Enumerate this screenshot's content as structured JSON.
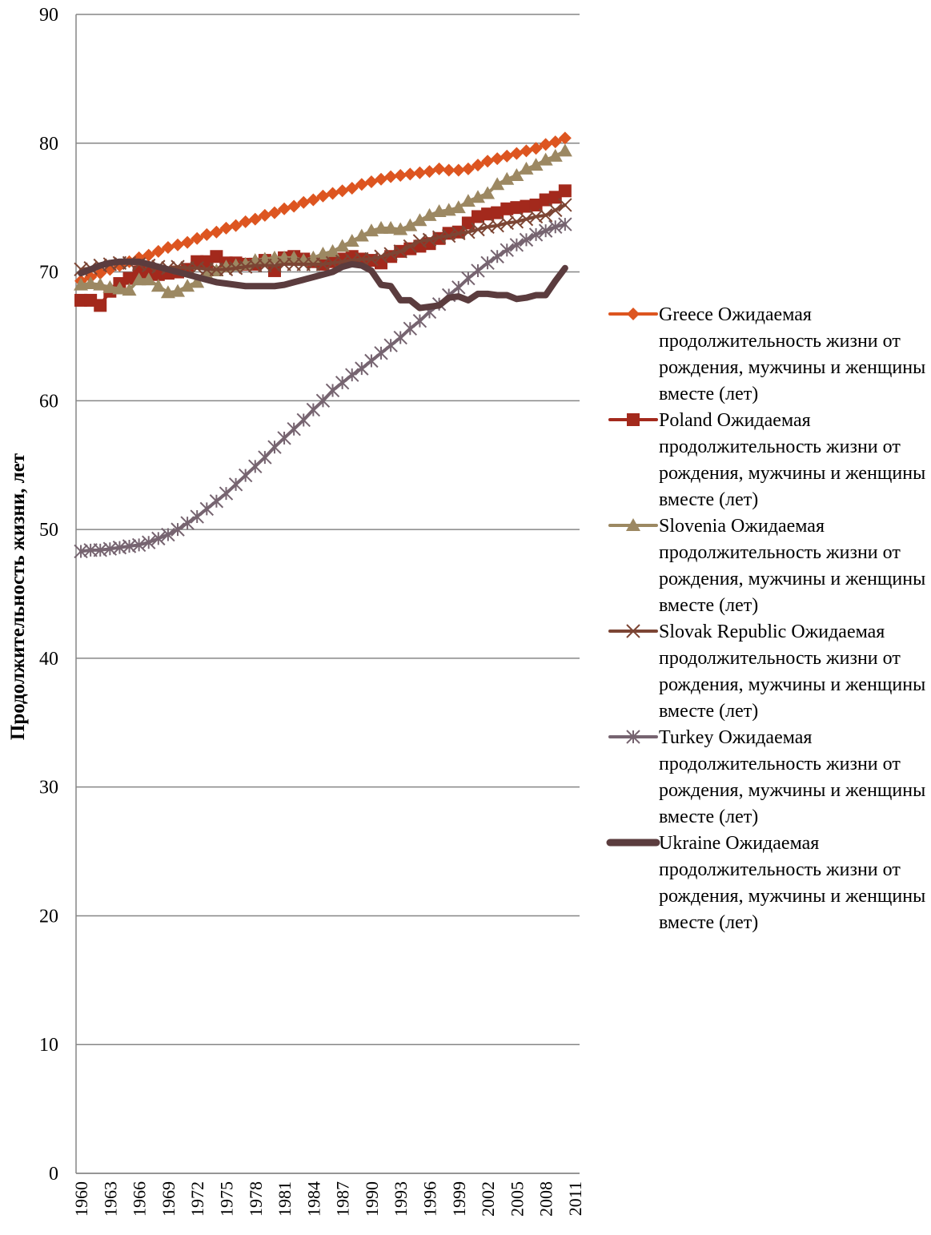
{
  "chart_data": {
    "type": "line",
    "y_axis_label": "Продолжительность жизни, лет",
    "categories": [
      "1960",
      null,
      null,
      "1963",
      null,
      null,
      "1966",
      null,
      null,
      "1969",
      null,
      null,
      "1972",
      null,
      null,
      "1975",
      null,
      null,
      "1978",
      null,
      null,
      "1981",
      null,
      null,
      "1984",
      null,
      null,
      "1987",
      null,
      null,
      "1990",
      null,
      null,
      "1993",
      null,
      null,
      "1996",
      null,
      null,
      "1999",
      null,
      null,
      "2002",
      null,
      null,
      "2005",
      null,
      null,
      "2008",
      null,
      null,
      "2011"
    ],
    "ylim": [
      0,
      90
    ],
    "yticks": [
      0,
      10,
      20,
      30,
      40,
      50,
      60,
      70,
      80,
      90
    ],
    "grid": true,
    "legend": "right",
    "series": [
      {
        "name": "Greece Ожидаемая продолжительность жизни от рождения, мужчины и женщины вместе (лет)",
        "color": "#dd5520",
        "marker": "diamond",
        "values": [
          69.3,
          69.6,
          69.9,
          70.2,
          70.5,
          70.8,
          71.1,
          71.3,
          71.6,
          71.9,
          72.1,
          72.3,
          72.6,
          72.9,
          73.1,
          73.4,
          73.6,
          73.9,
          74.1,
          74.4,
          74.6,
          74.9,
          75.1,
          75.4,
          75.6,
          75.9,
          76.1,
          76.3,
          76.5,
          76.8,
          77.0,
          77.2,
          77.4,
          77.5,
          77.6,
          77.7,
          77.8,
          78.0,
          77.9,
          77.9,
          78.0,
          78.3,
          78.6,
          78.8,
          79.0,
          79.2,
          79.4,
          79.6,
          79.9,
          80.1,
          80.4,
          null
        ]
      },
      {
        "name": "Poland Ожидаемая продолжительность жизни от рождения, мужчины и женщины вместе (лет)",
        "color": "#a3291c",
        "marker": "square",
        "values": [
          67.8,
          67.8,
          67.4,
          68.5,
          69.1,
          69.5,
          70.0,
          69.9,
          69.8,
          69.9,
          70.0,
          70.2,
          70.8,
          70.8,
          71.2,
          70.7,
          70.7,
          70.6,
          70.6,
          70.9,
          70.1,
          71.1,
          71.2,
          71.0,
          70.8,
          70.6,
          70.8,
          71.0,
          71.2,
          71.0,
          70.9,
          70.7,
          71.2,
          71.6,
          71.8,
          72.0,
          72.2,
          72.6,
          73.0,
          73.1,
          73.8,
          74.3,
          74.5,
          74.6,
          74.9,
          75.0,
          75.1,
          75.2,
          75.6,
          75.8,
          76.3,
          null
        ]
      },
      {
        "name": "Slovenia Ожидаемая продолжительность жизни от рождения, мужчины и женщины вместе (лет)",
        "color": "#9c8862",
        "marker": "triangle",
        "values": [
          69.0,
          69.1,
          69.0,
          68.8,
          68.7,
          68.6,
          69.4,
          69.4,
          68.9,
          68.4,
          68.5,
          68.9,
          69.2,
          69.8,
          70.1,
          70.4,
          70.5,
          70.6,
          70.9,
          71.0,
          71.1,
          71.1,
          71.1,
          70.9,
          71.1,
          71.4,
          71.6,
          72.0,
          72.4,
          72.8,
          73.2,
          73.4,
          73.4,
          73.3,
          73.6,
          74.0,
          74.4,
          74.7,
          74.8,
          75.0,
          75.5,
          75.8,
          76.1,
          76.8,
          77.2,
          77.5,
          78.0,
          78.3,
          78.7,
          79.0,
          79.4,
          null
        ]
      },
      {
        "name": "Slovak Republic Ожидаемая продолжительность жизни от рождения, мужчины и женщины вместе (лет)",
        "color": "#7c4534",
        "marker": "x",
        "values": [
          70.2,
          70.3,
          70.5,
          70.6,
          70.7,
          70.7,
          70.6,
          70.5,
          70.4,
          70.3,
          70.4,
          70.3,
          70.3,
          70.2,
          70.2,
          70.2,
          70.3,
          70.4,
          70.5,
          70.5,
          70.5,
          70.6,
          70.6,
          70.6,
          70.6,
          70.6,
          70.7,
          70.8,
          70.9,
          71.0,
          71.0,
          71.2,
          71.4,
          71.6,
          72.0,
          72.4,
          72.5,
          72.7,
          72.8,
          73.0,
          73.1,
          73.3,
          73.5,
          73.6,
          73.8,
          73.9,
          74.1,
          74.3,
          74.4,
          74.8,
          75.2,
          null
        ]
      },
      {
        "name": "Turkey Ожидаемая продолжительность жизни от рождения, мужчины и женщины вместе (лет)",
        "color": "#766470",
        "marker": "star",
        "values": [
          48.3,
          48.4,
          48.4,
          48.5,
          48.6,
          48.7,
          48.8,
          49.0,
          49.3,
          49.6,
          50.0,
          50.5,
          51.0,
          51.6,
          52.2,
          52.8,
          53.5,
          54.2,
          54.9,
          55.6,
          56.4,
          57.1,
          57.8,
          58.5,
          59.3,
          60.0,
          60.8,
          61.4,
          62.0,
          62.5,
          63.1,
          63.7,
          64.3,
          64.9,
          65.6,
          66.2,
          66.9,
          67.5,
          68.2,
          68.8,
          69.5,
          70.1,
          70.7,
          71.2,
          71.7,
          72.1,
          72.5,
          72.9,
          73.2,
          73.5,
          73.7,
          null
        ]
      },
      {
        "name": "Ukraine Ожидаемая продолжительность жизни от рождения, мужчины и женщины вместе (лет)",
        "color": "#5b3c3e",
        "marker": "none",
        "values": [
          69.9,
          70.2,
          70.5,
          70.7,
          70.8,
          70.8,
          70.8,
          70.6,
          70.4,
          70.2,
          70.0,
          69.8,
          69.6,
          69.4,
          69.2,
          69.1,
          69.0,
          68.9,
          68.9,
          68.9,
          68.9,
          69.0,
          69.2,
          69.4,
          69.6,
          69.8,
          70.0,
          70.4,
          70.6,
          70.5,
          70.1,
          69.0,
          68.9,
          67.8,
          67.8,
          67.2,
          67.3,
          67.4,
          68.0,
          68.1,
          67.8,
          68.3,
          68.3,
          68.2,
          68.2,
          67.9,
          68.0,
          68.2,
          68.2,
          69.3,
          70.3,
          null
        ]
      }
    ]
  }
}
